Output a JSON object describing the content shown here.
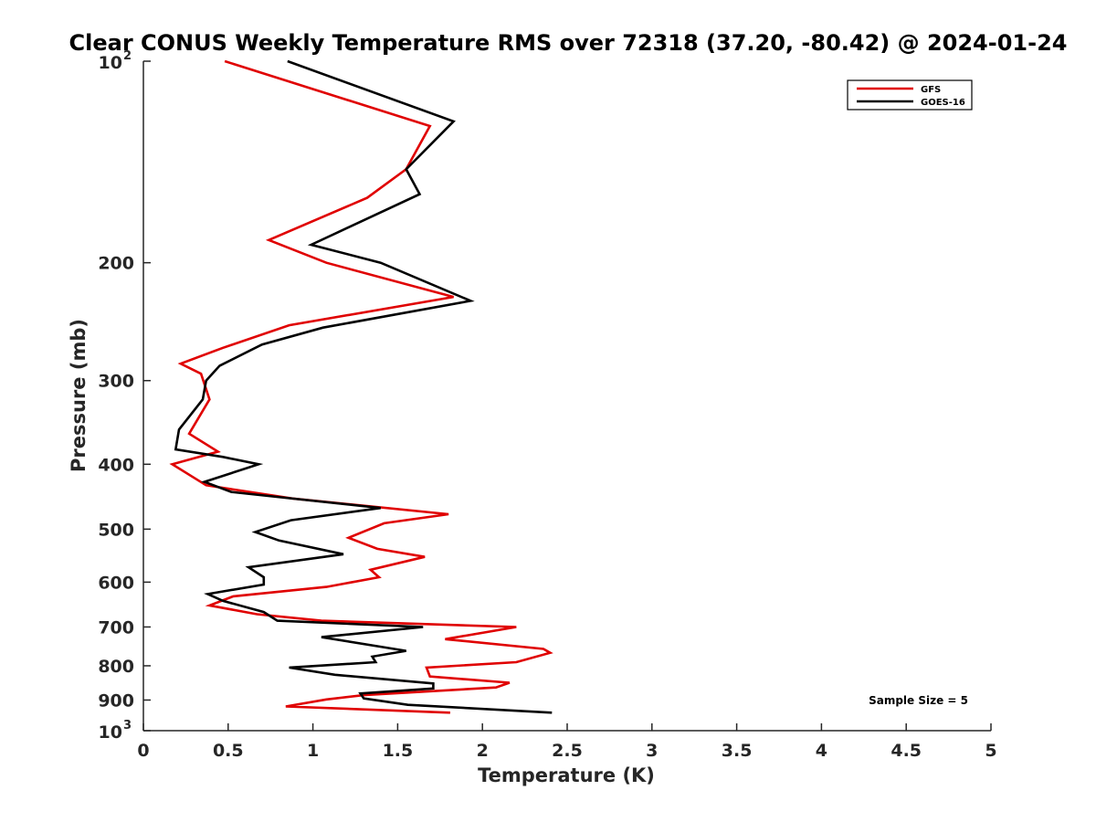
{
  "chart_data": {
    "type": "line",
    "title": "Clear CONUS Weekly Temperature RMS over 72318 (37.20, -80.42) @ 2024-01-24",
    "xlabel": "Temperature (K)",
    "ylabel": "Pressure (mb)",
    "xlim": [
      0,
      5
    ],
    "ylim": [
      100,
      1000
    ],
    "y_scale": "log",
    "y_reversed": true,
    "x_ticks": [
      "0",
      "0.5",
      "1",
      "1.5",
      "2",
      "2.5",
      "3",
      "3.5",
      "4",
      "4.5",
      "5"
    ],
    "y_ticks": [
      {
        "value": 100,
        "base": "10",
        "exp": "2"
      },
      {
        "value": 200,
        "label": "200"
      },
      {
        "value": 300,
        "label": "300"
      },
      {
        "value": 400,
        "label": "400"
      },
      {
        "value": 500,
        "label": "500"
      },
      {
        "value": 600,
        "label": "600"
      },
      {
        "value": 700,
        "label": "700"
      },
      {
        "value": 800,
        "label": "800"
      },
      {
        "value": 900,
        "label": "900"
      },
      {
        "value": 1000,
        "base": "10",
        "exp": "3"
      }
    ],
    "grid": false,
    "legend_position": "top-right",
    "annotation": "Sample Size = 5",
    "series": [
      {
        "name": "GFS",
        "color": "#e00000",
        "points": [
          [
            0.48,
            100
          ],
          [
            1.69,
            125
          ],
          [
            1.55,
            145
          ],
          [
            1.32,
            160
          ],
          [
            0.74,
            185
          ],
          [
            1.08,
            200
          ],
          [
            1.83,
            225
          ],
          [
            0.86,
            248
          ],
          [
            0.47,
            268
          ],
          [
            0.22,
            283
          ],
          [
            0.34,
            293
          ],
          [
            0.39,
            320
          ],
          [
            0.27,
            360
          ],
          [
            0.44,
            383
          ],
          [
            0.17,
            400
          ],
          [
            0.37,
            430
          ],
          [
            0.88,
            450
          ],
          [
            1.8,
            475
          ],
          [
            1.42,
            490
          ],
          [
            1.21,
            515
          ],
          [
            1.38,
            535
          ],
          [
            1.66,
            550
          ],
          [
            1.34,
            575
          ],
          [
            1.39,
            590
          ],
          [
            1.08,
            610
          ],
          [
            0.53,
            630
          ],
          [
            0.39,
            650
          ],
          [
            0.67,
            670
          ],
          [
            1.05,
            685
          ],
          [
            2.2,
            700
          ],
          [
            1.78,
            730
          ],
          [
            2.36,
            755
          ],
          [
            2.4,
            765
          ],
          [
            2.2,
            790
          ],
          [
            1.67,
            805
          ],
          [
            1.69,
            830
          ],
          [
            2.16,
            848
          ],
          [
            2.08,
            862
          ],
          [
            1.3,
            885
          ],
          [
            1.08,
            898
          ],
          [
            0.84,
            920
          ],
          [
            1.81,
            940
          ]
        ]
      },
      {
        "name": "GOES-16",
        "color": "#000000",
        "points": [
          [
            0.85,
            100
          ],
          [
            1.83,
            123
          ],
          [
            1.55,
            145
          ],
          [
            1.63,
            158
          ],
          [
            0.99,
            188
          ],
          [
            1.4,
            200
          ],
          [
            1.93,
            228
          ],
          [
            1.06,
            250
          ],
          [
            0.7,
            265
          ],
          [
            0.45,
            285
          ],
          [
            0.37,
            300
          ],
          [
            0.35,
            320
          ],
          [
            0.21,
            355
          ],
          [
            0.19,
            380
          ],
          [
            0.47,
            390
          ],
          [
            0.68,
            400
          ],
          [
            0.36,
            425
          ],
          [
            0.52,
            440
          ],
          [
            1.4,
            465
          ],
          [
            0.87,
            485
          ],
          [
            0.66,
            505
          ],
          [
            0.8,
            520
          ],
          [
            1.18,
            545
          ],
          [
            0.62,
            570
          ],
          [
            0.71,
            590
          ],
          [
            0.71,
            605
          ],
          [
            0.38,
            625
          ],
          [
            0.47,
            640
          ],
          [
            0.71,
            665
          ],
          [
            0.79,
            685
          ],
          [
            1.65,
            700
          ],
          [
            1.05,
            725
          ],
          [
            1.55,
            760
          ],
          [
            1.35,
            775
          ],
          [
            1.37,
            790
          ],
          [
            0.86,
            805
          ],
          [
            1.13,
            825
          ],
          [
            1.71,
            850
          ],
          [
            1.71,
            865
          ],
          [
            1.28,
            880
          ],
          [
            1.3,
            895
          ],
          [
            1.56,
            915
          ],
          [
            2.41,
            940
          ]
        ]
      }
    ]
  }
}
